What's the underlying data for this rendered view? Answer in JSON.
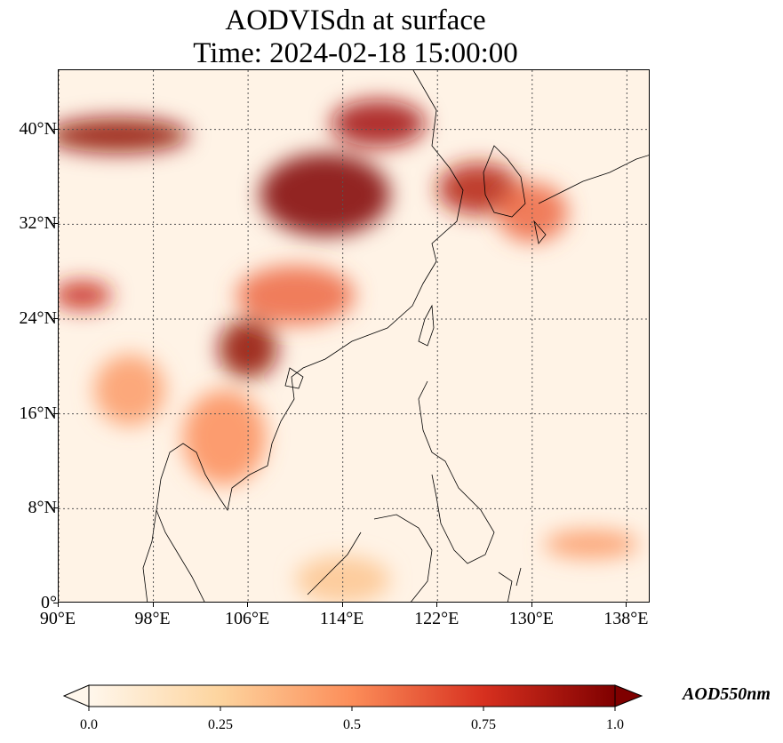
{
  "title": {
    "line1": "AODVISdn at surface",
    "line2": "Time: 2024-02-18 15:00:00"
  },
  "map": {
    "extent": {
      "lon_min": 90,
      "lon_max": 140,
      "lat_min": 0,
      "lat_max": 45
    },
    "projection": "PlateCarree",
    "gridlines": "dotted",
    "lat_ticks": [
      {
        "value": 0,
        "label": "0°"
      },
      {
        "value": 8,
        "label": "8°N"
      },
      {
        "value": 16,
        "label": "16°N"
      },
      {
        "value": 24,
        "label": "24°N"
      },
      {
        "value": 32,
        "label": "32°N"
      },
      {
        "value": 40,
        "label": "40°N"
      }
    ],
    "lon_ticks": [
      {
        "value": 90,
        "label": "90°E"
      },
      {
        "value": 98,
        "label": "98°E"
      },
      {
        "value": 106,
        "label": "106°E"
      },
      {
        "value": 114,
        "label": "114°E"
      },
      {
        "value": 122,
        "label": "122°E"
      },
      {
        "value": 130,
        "label": "130°E"
      },
      {
        "value": 138,
        "label": "138°E"
      }
    ],
    "aod_regions": [
      {
        "name": "north-china-plain",
        "lon": 112.5,
        "lat": 34.5,
        "rlon": 5.5,
        "rlat": 3.5,
        "value": 1.0
      },
      {
        "name": "northwest-plume",
        "lon": 95,
        "lat": 39.5,
        "rlon": 6,
        "rlat": 1.5,
        "value": 0.95
      },
      {
        "name": "northeast-band",
        "lon": 117,
        "lat": 40.5,
        "rlon": 4,
        "rlat": 2,
        "value": 0.9
      },
      {
        "name": "korea-yellow-sea",
        "lon": 125.5,
        "lat": 35,
        "rlon": 3.5,
        "rlat": 2.2,
        "value": 0.85
      },
      {
        "name": "northern-vietnam",
        "lon": 106,
        "lat": 21.5,
        "rlon": 2.5,
        "rlat": 2.5,
        "value": 0.95
      },
      {
        "name": "myanmar-north",
        "lon": 92,
        "lat": 26,
        "rlon": 2.5,
        "rlat": 1.2,
        "value": 0.8
      },
      {
        "name": "south-china",
        "lon": 110,
        "lat": 26,
        "rlon": 5,
        "rlat": 2.5,
        "value": 0.6
      },
      {
        "name": "thailand-cambodia",
        "lon": 104,
        "lat": 14,
        "rlon": 3.5,
        "rlat": 4,
        "value": 0.5
      },
      {
        "name": "japan-sea",
        "lon": 130,
        "lat": 33,
        "rlon": 3,
        "rlat": 2.5,
        "value": 0.6
      },
      {
        "name": "pacific-band",
        "lon": 135,
        "lat": 5,
        "rlon": 4,
        "rlat": 1.2,
        "value": 0.45
      },
      {
        "name": "borneo",
        "lon": 114,
        "lat": 2,
        "rlon": 4,
        "rlat": 2,
        "value": 0.3
      },
      {
        "name": "indochina-west",
        "lon": 96,
        "lat": 18,
        "rlon": 3,
        "rlat": 3,
        "value": 0.45
      }
    ]
  },
  "colorbar": {
    "title": "AOD550nm",
    "vmin": 0.0,
    "vmax": 1.0,
    "extend": "both",
    "cmap": "OrRd",
    "tick_labels": [
      "0.0",
      "0.25",
      "0.5",
      "0.75",
      "1.0"
    ],
    "colors": [
      "#fff7ec",
      "#fdd49e",
      "#fc8d59",
      "#d7301f",
      "#7f0000"
    ]
  }
}
